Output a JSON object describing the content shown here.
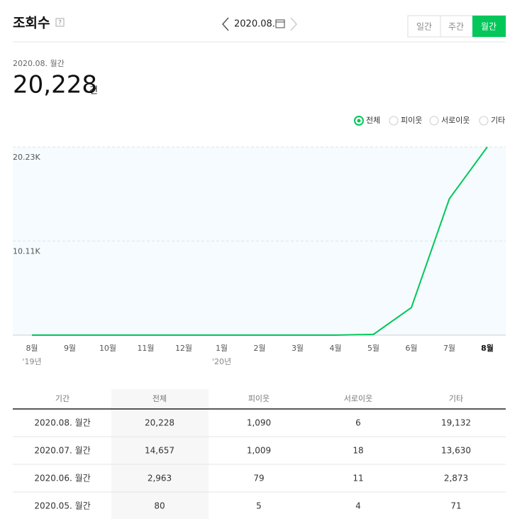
{
  "header": {
    "title": "조회수",
    "help": "?",
    "date": "2020.08.",
    "tabs": [
      "일간",
      "주간",
      "월간"
    ]
  },
  "summary": {
    "period": "2020.08. 월간",
    "total": "20,228",
    "unit": "건"
  },
  "chart_data": {
    "type": "line",
    "filters": [
      "전체",
      "피이웃",
      "서로이웃",
      "기타"
    ],
    "categories": [
      "8월",
      "9월",
      "10월",
      "11월",
      "12월",
      "1월",
      "2월",
      "3월",
      "4월",
      "5월",
      "6월",
      "7월",
      "8월"
    ],
    "x_sublabels": [
      "'19년",
      null,
      null,
      null,
      null,
      "'20년",
      null,
      null,
      null,
      null,
      null,
      null,
      null
    ],
    "series": [
      {
        "name": "전체",
        "color": "#03c75a",
        "values": [
          0,
          0,
          0,
          0,
          0,
          0,
          0,
          0,
          0,
          80,
          2963,
          14657,
          20228
        ]
      }
    ],
    "ylim": [
      0,
      20228
    ],
    "yticks": [
      {
        "value": 10114,
        "label": "10.11K"
      },
      {
        "value": 20228,
        "label": "20.23K"
      }
    ],
    "grid": true
  },
  "table": {
    "columns": [
      "기간",
      "전체",
      "피이웃",
      "서로이웃",
      "기타"
    ],
    "rows": [
      [
        "2020.08. 월간",
        "20,228",
        "1,090",
        "6",
        "19,132"
      ],
      [
        "2020.07. 월간",
        "14,657",
        "1,009",
        "18",
        "13,630"
      ],
      [
        "2020.06. 월간",
        "2,963",
        "79",
        "11",
        "2,873"
      ],
      [
        "2020.05. 월간",
        "80",
        "5",
        "4",
        "71"
      ]
    ]
  }
}
